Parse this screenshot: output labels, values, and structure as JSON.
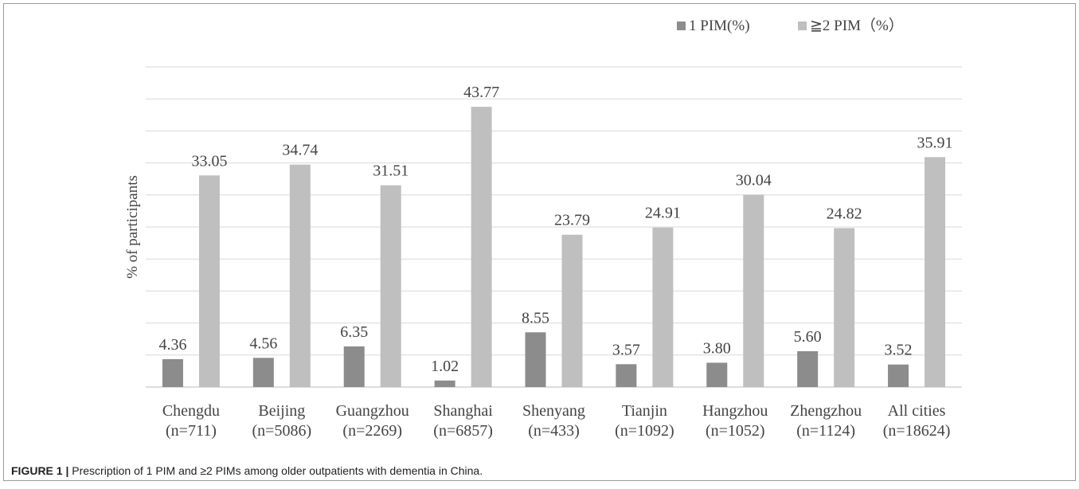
{
  "chart_data": {
    "type": "bar",
    "categories": [
      [
        "Chengdu",
        "(n=711)"
      ],
      [
        "Beijing",
        "(n=5086)"
      ],
      [
        "Guangzhou",
        "(n=2269)"
      ],
      [
        "Shanghai",
        "(n=6857)"
      ],
      [
        "Shenyang",
        "(n=433)"
      ],
      [
        "Tianjin",
        "(n=1092)"
      ],
      [
        "Hangzhou",
        "(n=1052)"
      ],
      [
        "Zhengzhou",
        "(n=1124)"
      ],
      [
        "All cities",
        "(n=18624)"
      ]
    ],
    "series": [
      {
        "name": "1 PIM(%)",
        "color": "#8c8c8c",
        "values": [
          4.36,
          4.56,
          6.35,
          1.02,
          8.55,
          3.57,
          3.8,
          5.6,
          3.52
        ],
        "labels": [
          "4.36",
          "4.56",
          "6.35",
          "1.02",
          "8.55",
          "3.57",
          "3.80",
          "5.60",
          "3.52"
        ]
      },
      {
        "name": "≧2 PIM（%）",
        "color": "#bfbfbf",
        "values": [
          33.05,
          34.74,
          31.51,
          43.77,
          23.79,
          24.91,
          30.04,
          24.82,
          35.91
        ],
        "labels": [
          "33.05",
          "34.74",
          "31.51",
          "43.77",
          "23.79",
          "24.91",
          "30.04",
          "24.82",
          "35.91"
        ]
      }
    ],
    "xlabel": "",
    "ylabel": "% of participants",
    "ylim": [
      0,
      50
    ],
    "grid": true,
    "legend_position": "top-right"
  },
  "caption": {
    "label": "FIGURE 1 |",
    "text": " Prescription of 1 PIM and ≥2 PIMs among older outpatients with dementia in China."
  }
}
